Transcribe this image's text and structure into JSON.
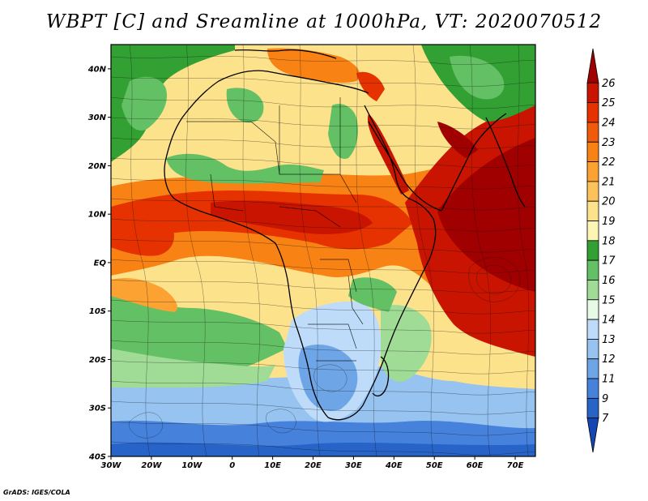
{
  "title": "WBPT [C] and Sreamline at 1000hPa, VT: 2020070512",
  "credit": "GrADS: IGES/COLA",
  "map": {
    "lat_labels": [
      "40N",
      "30N",
      "20N",
      "10N",
      "EQ",
      "10S",
      "20S",
      "30S",
      "40S"
    ],
    "lon_labels": [
      "30W",
      "20W",
      "10W",
      "0",
      "10E",
      "20E",
      "30E",
      "40E",
      "50E",
      "60E",
      "70E"
    ],
    "lat_range": [
      -40,
      45
    ],
    "lon_range": [
      -30,
      75
    ]
  },
  "colorbar": {
    "labels": [
      "26",
      "25",
      "24",
      "23",
      "22",
      "21",
      "20",
      "19",
      "18",
      "17",
      "16",
      "15",
      "14",
      "13",
      "12",
      "11",
      "9",
      "7"
    ],
    "colors": [
      "#a00000",
      "#c81400",
      "#e63200",
      "#f05a0a",
      "#f88214",
      "#fba232",
      "#fdc35a",
      "#fde28c",
      "#fdf5b4",
      "#32a032",
      "#64c064",
      "#a0dc96",
      "#e6fae6",
      "#bedcfa",
      "#96c3f0",
      "#6ea5e6",
      "#4682dc",
      "#2864c8",
      "#1446b4"
    ]
  }
}
